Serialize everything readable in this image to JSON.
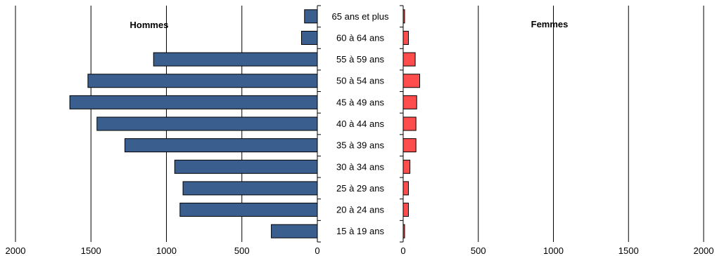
{
  "chart_data": [
    {
      "type": "bar",
      "orientation": "horizontal",
      "title": "Hommes",
      "categories": [
        "65 ans et plus",
        "60 à 64 ans",
        "55 à 59 ans",
        "50 à 54 ans",
        "45 à 49 ans",
        "40 à 44 ans",
        "35 à 39 ans",
        "30 à 34 ans",
        "25 à 29 ans",
        "20 à 24 ans",
        "15 à 19 ans"
      ],
      "values": [
        85,
        105,
        1085,
        1520,
        1640,
        1460,
        1275,
        945,
        890,
        910,
        305
      ],
      "xlim": [
        0,
        2000
      ],
      "x_reversed": true,
      "xticks": [
        "0",
        "500",
        "1000",
        "1500",
        "2000"
      ],
      "color": "#3a5f8f",
      "grid": "vertical"
    },
    {
      "type": "bar",
      "orientation": "horizontal",
      "title": "Femmes",
      "categories": [
        "65 ans et plus",
        "60 à 64 ans",
        "55 à 59 ans",
        "50 à 54 ans",
        "45 à 49 ans",
        "40 à 44 ans",
        "35 à 39 ans",
        "30 à 34 ans",
        "25 à 29 ans",
        "20 à 24 ans",
        "15 à 19 ans"
      ],
      "values": [
        8,
        35,
        80,
        110,
        90,
        85,
        85,
        45,
        35,
        35,
        8
      ],
      "xlim": [
        0,
        2000
      ],
      "xticks": [
        "0",
        "500",
        "1000",
        "1500",
        "2000"
      ],
      "color": "#ff4d4d",
      "grid": "vertical"
    }
  ]
}
